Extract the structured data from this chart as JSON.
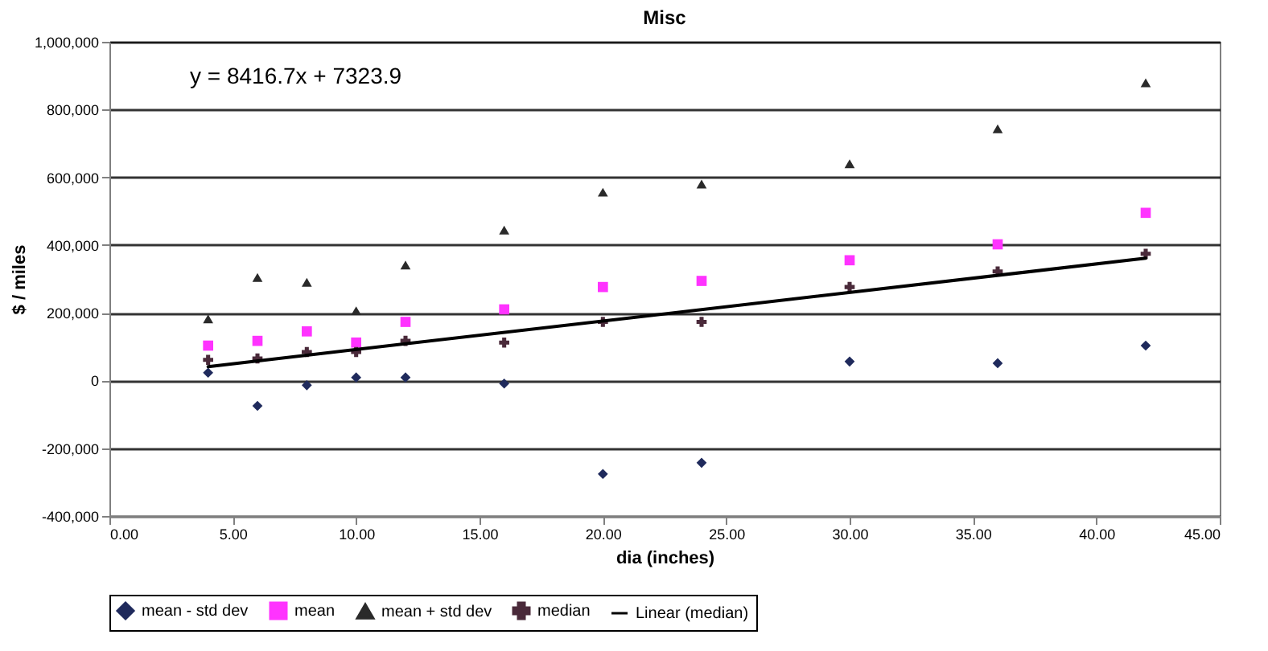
{
  "chart_data": {
    "type": "scatter",
    "title": "Misc",
    "xlabel": "dia (inches)",
    "ylabel": "$ / miles",
    "annotations": [
      "y = 8416.7x + 7323.9"
    ],
    "x": [
      4,
      6,
      8,
      10,
      12,
      16,
      20,
      24,
      30,
      36,
      42
    ],
    "series": [
      {
        "name": "mean - std dev",
        "color": "#1f2a5c",
        "marker": "diamond",
        "values": [
          23000,
          -75000,
          -14000,
          9000,
          9000,
          -9000,
          -276000,
          -243000,
          56000,
          51000,
          103000
        ]
      },
      {
        "name": "mean",
        "color": "#ff33ff",
        "marker": "square",
        "values": [
          103000,
          117000,
          145000,
          112000,
          173000,
          210000,
          276000,
          294000,
          355000,
          402000,
          495000
        ]
      },
      {
        "name": "mean + std dev",
        "color": "#2a2a2a",
        "marker": "triangle",
        "values": [
          182000,
          304000,
          290000,
          206000,
          341000,
          444000,
          556000,
          580000,
          640000,
          743000,
          879000
        ]
      },
      {
        "name": "median",
        "color": "#4a2a3a",
        "marker": "cross",
        "values": [
          61000,
          65000,
          84000,
          84000,
          117000,
          112000,
          173000,
          173000,
          276000,
          322000,
          374000
        ]
      },
      {
        "name": "Linear (median)",
        "type": "line",
        "color": "#000000",
        "marker": "none",
        "line_style": "solid",
        "x": [
          4,
          42
        ],
        "values": [
          41000,
          361000
        ]
      }
    ],
    "xlim": [
      0,
      45
    ],
    "xticks": [
      {
        "value": 0,
        "label": "0.00"
      },
      {
        "value": 5,
        "label": "5.00"
      },
      {
        "value": 10,
        "label": "10.00"
      },
      {
        "value": 15,
        "label": "15.00"
      },
      {
        "value": 20,
        "label": "20.00"
      },
      {
        "value": 25,
        "label": "25.00"
      },
      {
        "value": 30,
        "label": "30.00"
      },
      {
        "value": 35,
        "label": "35.00"
      },
      {
        "value": 40,
        "label": "40.00"
      },
      {
        "value": 45,
        "label": "45.00"
      }
    ],
    "ylim": [
      -400000,
      1000000
    ],
    "yticks": [
      {
        "value": -400000,
        "label": "-400,000"
      },
      {
        "value": -200000,
        "label": "-200,000"
      },
      0,
      {
        "value": 200000,
        "label": "200,000"
      },
      {
        "value": 400000,
        "label": "400,000"
      },
      {
        "value": 600000,
        "label": "600,000"
      },
      {
        "value": 800000,
        "label": "800,000"
      },
      {
        "value": 1000000,
        "label": "1,000,000"
      }
    ],
    "grid": "y",
    "legend": "bottom"
  }
}
